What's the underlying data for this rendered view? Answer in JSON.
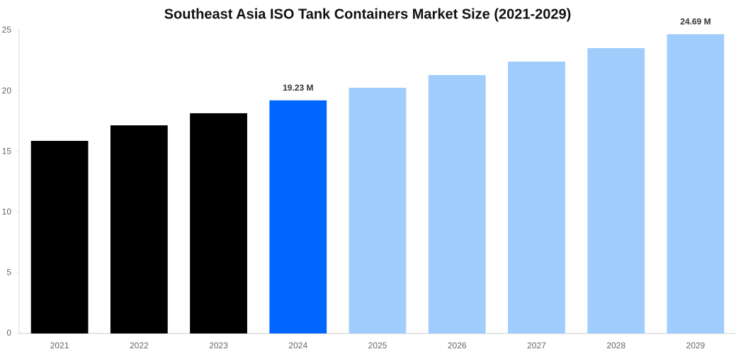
{
  "chart_data": {
    "type": "bar",
    "title": "Southeast Asia ISO Tank Containers Market Size (2021-2029)",
    "categories": [
      "2021",
      "2022",
      "2023",
      "2024",
      "2025",
      "2026",
      "2027",
      "2028",
      "2029"
    ],
    "values": [
      15.89,
      17.17,
      18.17,
      19.23,
      20.27,
      21.32,
      22.43,
      23.54,
      24.69
    ],
    "value_labels": [
      null,
      null,
      null,
      "19.23 M",
      null,
      null,
      null,
      null,
      "24.69 M"
    ],
    "colors": [
      "#000000",
      "#000000",
      "#000000",
      "#0066ff",
      "#a0cdfc",
      "#a0cdfc",
      "#a0cdfc",
      "#a0cdfc",
      "#a0cdfc"
    ],
    "ylim": [
      0,
      25
    ],
    "yticks": [
      0,
      5,
      10,
      15,
      20,
      25
    ],
    "grid": false
  }
}
